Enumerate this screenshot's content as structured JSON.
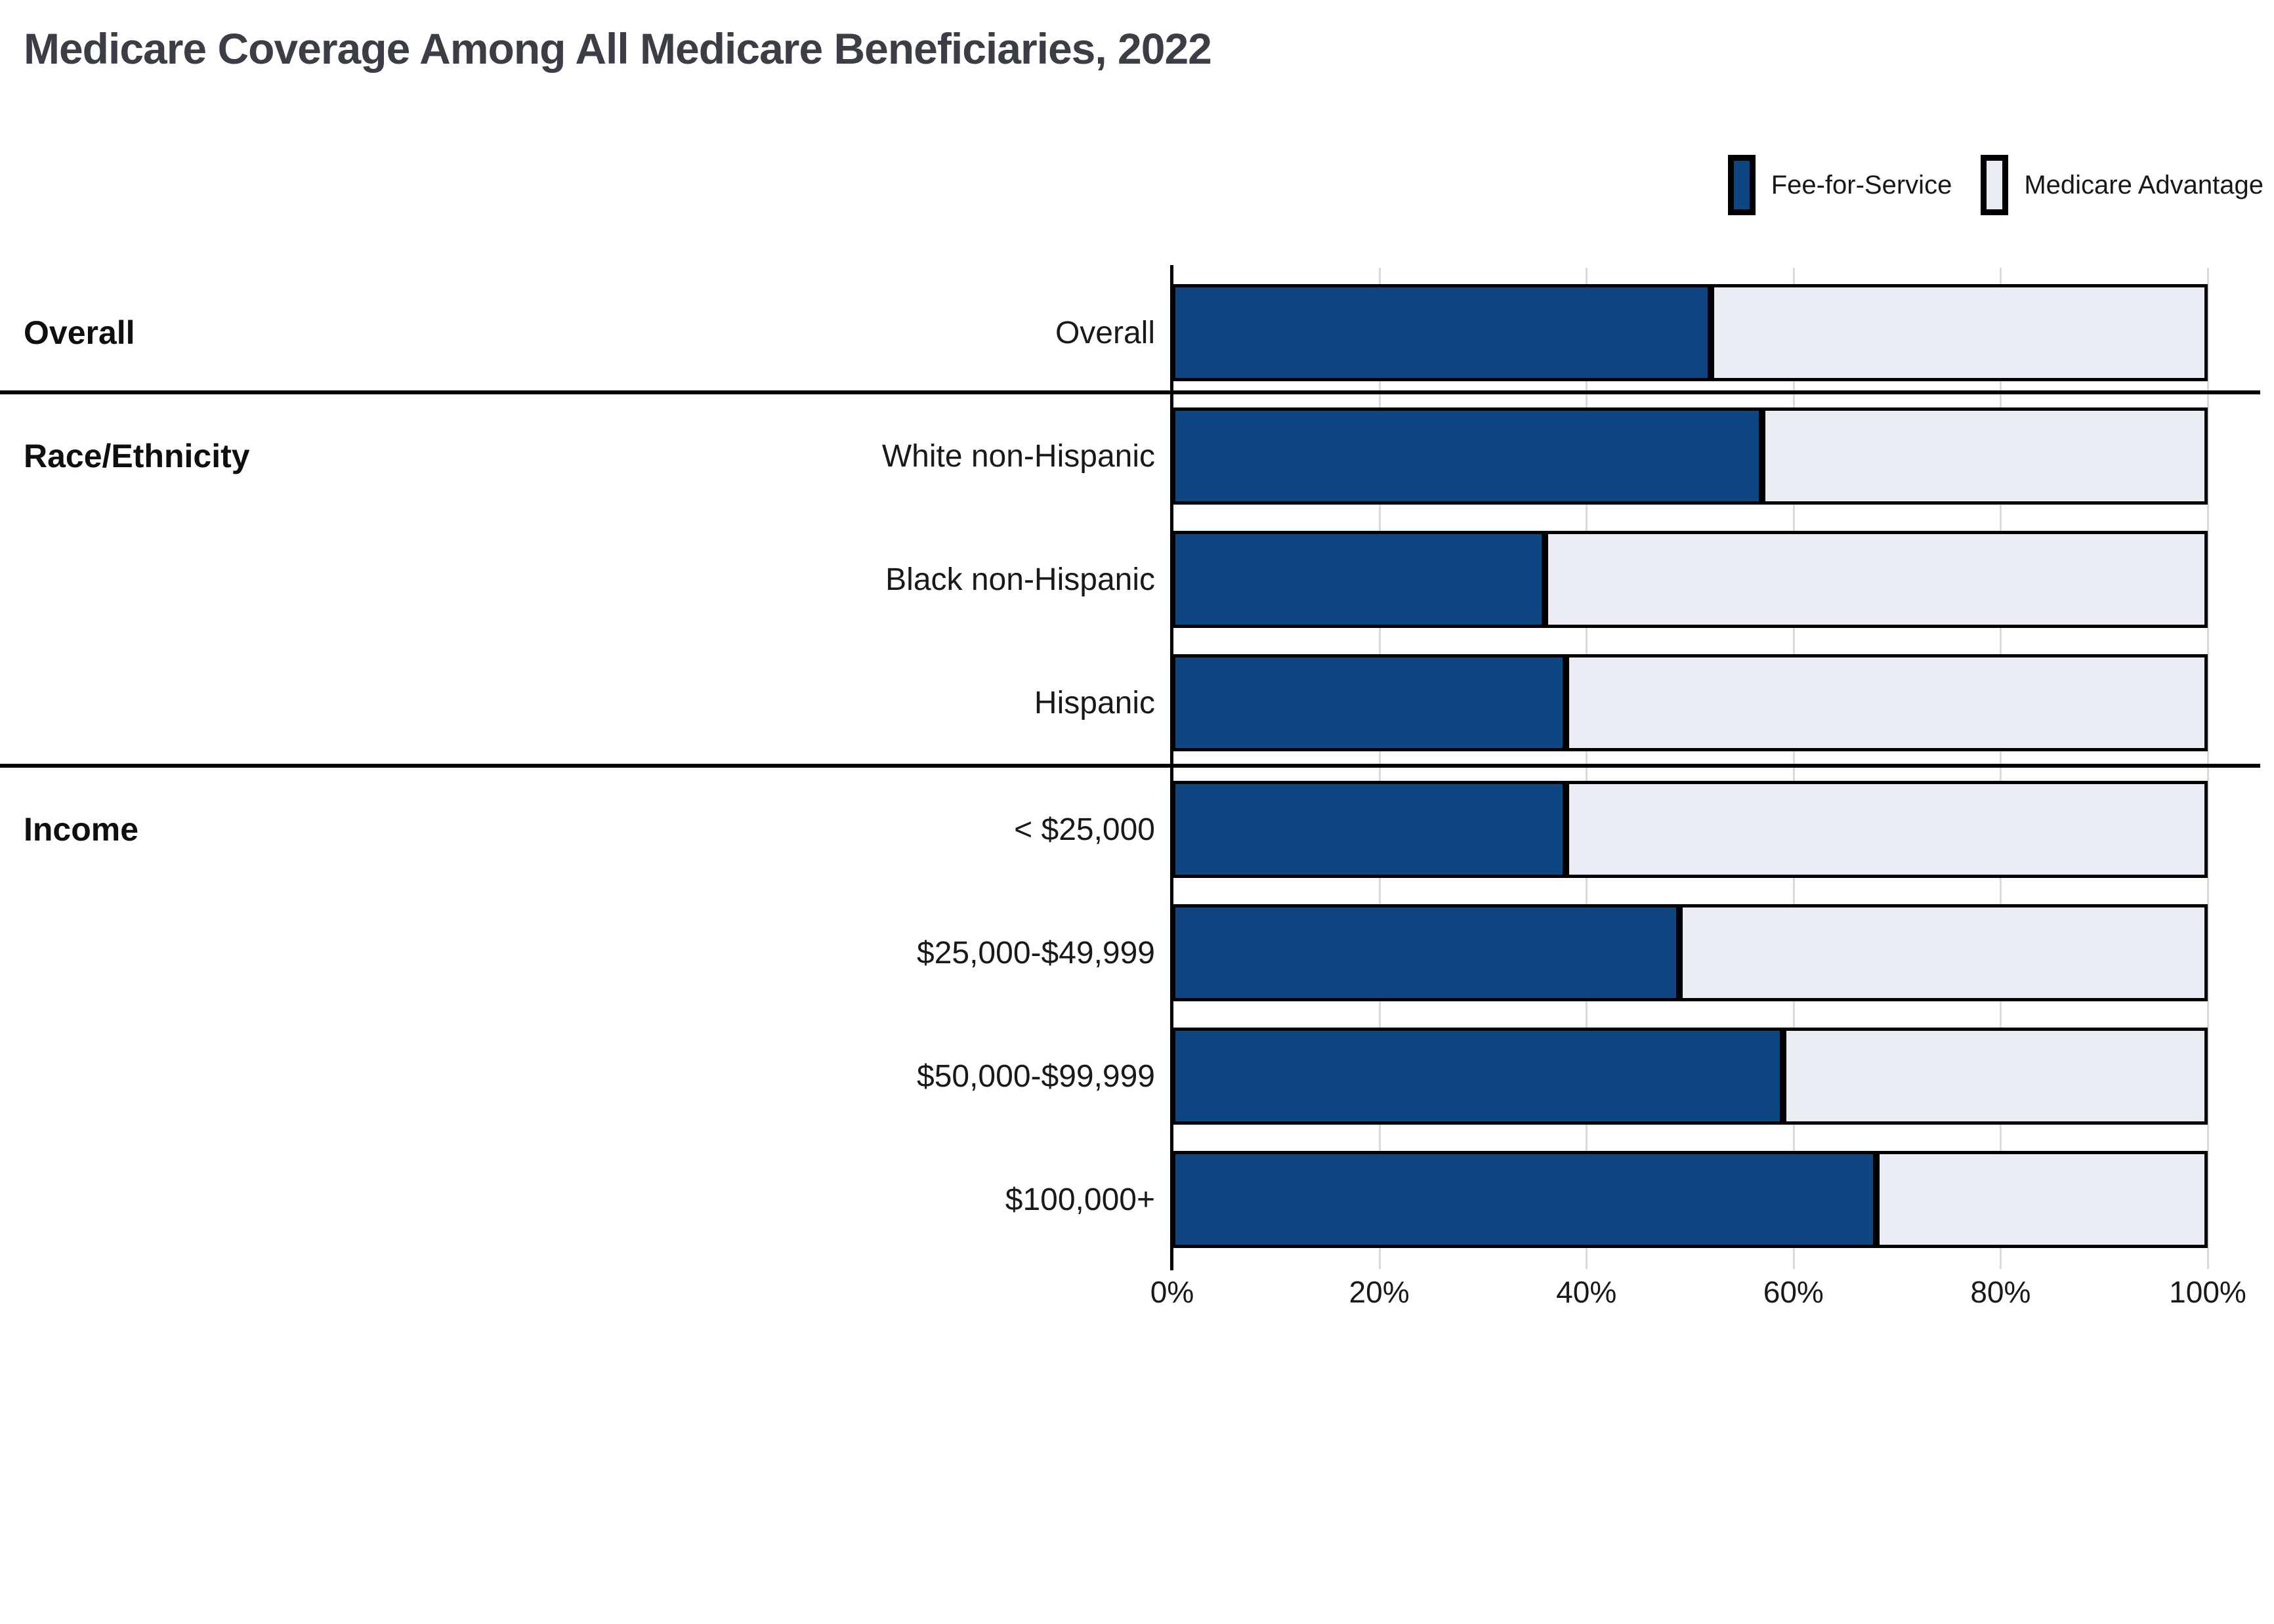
{
  "title": "Medicare Coverage Among All Medicare Beneficiaries, 2022",
  "legend": {
    "items": [
      {
        "label": "Fee-for-Service",
        "color": "#0d4680"
      },
      {
        "label": "Medicare Advantage",
        "color": "#e9ecf3"
      }
    ],
    "position": "top-right"
  },
  "chart_data": {
    "type": "bar",
    "orientation": "horizontal",
    "stacked": true,
    "title": "Medicare Coverage Among All Medicare Beneficiaries, 2022",
    "categories": [
      "Overall",
      "White non-Hispanic",
      "Black non-Hispanic",
      "Hispanic",
      "< $25,000",
      "$25,000-$49,999",
      "$50,000-$99,999",
      "$100,000+"
    ],
    "series": [
      {
        "name": "Fee-for-Service",
        "color": "#0d4680",
        "values": [
          52,
          57,
          36,
          38,
          38,
          49,
          59,
          68
        ]
      },
      {
        "name": "Medicare Advantage",
        "color": "#e9ecf3",
        "values": [
          48,
          43,
          64,
          62,
          62,
          51,
          41,
          32
        ]
      }
    ],
    "sections": [
      {
        "label": "Overall",
        "first_row": 0
      },
      {
        "label": "Race/Ethnicity",
        "first_row": 1
      },
      {
        "label": "Income",
        "first_row": 4
      }
    ],
    "x_ticks": [
      "0%",
      "20%",
      "40%",
      "60%",
      "80%",
      "100%"
    ],
    "xlim": [
      0,
      100
    ],
    "grid": true,
    "legend_position": "top-right",
    "xlabel": "",
    "ylabel": ""
  },
  "colors": {
    "bar_border": "#000000",
    "axis_line": "#000000",
    "section_divider": "#000000",
    "gridline": "#dadada",
    "title_text": "#3b3e44",
    "label_text": "#17191c",
    "background": "#ffffff"
  }
}
